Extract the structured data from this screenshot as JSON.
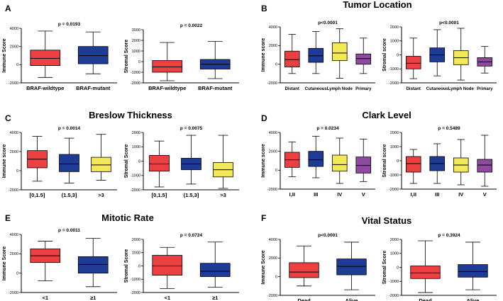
{
  "colors": {
    "red": "#ec3f42",
    "blue": "#1e3c96",
    "yellow": "#f3e857",
    "purple": "#8e49a1"
  },
  "panels": [
    {
      "letter": "A",
      "title": ""
    },
    {
      "letter": "B",
      "title": "Tumor Location"
    },
    {
      "letter": "C",
      "title": "Breslow Thickness"
    },
    {
      "letter": "D",
      "title": "Clark Level"
    },
    {
      "letter": "E",
      "title": "Mitotic Rate"
    },
    {
      "letter": "F",
      "title": "Vital Status"
    }
  ],
  "chart_data": [
    {
      "id": "A1",
      "type": "box",
      "ylabel": "Immune Score",
      "ylim": [
        -2000,
        4000
      ],
      "yticks": [
        -2000,
        0,
        2000,
        4000
      ],
      "p_label": "p = 0.0193",
      "categories": [
        "BRAF-wildtype",
        "BRAF-mutant"
      ],
      "colors": [
        "red",
        "blue"
      ],
      "boxes": [
        {
          "min": -1400,
          "q1": -100,
          "median": 700,
          "q3": 1600,
          "max": 3700
        },
        {
          "min": -1000,
          "q1": 100,
          "median": 1000,
          "q3": 2000,
          "max": 3600
        }
      ]
    },
    {
      "id": "A2",
      "type": "box",
      "ylabel": "Stromal Score",
      "ylim": [
        -2000,
        3000
      ],
      "yticks": [
        -2000,
        -1000,
        0,
        1000,
        2000,
        3000
      ],
      "p_label": "p = 0.0022",
      "categories": [
        "BRAF-wildtype",
        "BRAF-mutant"
      ],
      "colors": [
        "red",
        "blue"
      ],
      "boxes": [
        {
          "min": -1800,
          "q1": -1000,
          "median": -500,
          "q3": 100,
          "max": 1800
        },
        {
          "min": -1600,
          "q1": -700,
          "median": -250,
          "q3": 200,
          "max": 1900
        }
      ]
    },
    {
      "id": "B1",
      "type": "box",
      "ylabel": "Immune score",
      "ylim": [
        -2000,
        4000
      ],
      "yticks": [
        -2000,
        0,
        2000,
        4000
      ],
      "p_label": "p<0.0001",
      "categories": [
        "Distant",
        "Cutaneous",
        "Lymph Node",
        "Primary"
      ],
      "colors": [
        "red",
        "blue",
        "yellow",
        "purple"
      ],
      "boxes": [
        {
          "min": -1000,
          "q1": -300,
          "median": 500,
          "q3": 1400,
          "max": 3200
        },
        {
          "min": -1000,
          "q1": 200,
          "median": 900,
          "q3": 1700,
          "max": 3500
        },
        {
          "min": -1500,
          "q1": 400,
          "median": 1200,
          "q3": 2300,
          "max": 3800
        },
        {
          "min": -1000,
          "q1": 0,
          "median": 600,
          "q3": 1100,
          "max": 2800
        }
      ]
    },
    {
      "id": "B2",
      "type": "box",
      "ylabel": "Stromal score",
      "ylim": [
        -2000,
        2000
      ],
      "yticks": [
        -2000,
        -1000,
        0,
        1000,
        2000
      ],
      "p_label": "p<0.0001",
      "categories": [
        "Distant",
        "Cutaneous",
        "Lymph Node",
        "Primary"
      ],
      "colors": [
        "red",
        "blue",
        "yellow",
        "purple"
      ],
      "boxes": [
        {
          "min": -1700,
          "q1": -1000,
          "median": -600,
          "q3": -100,
          "max": 1200
        },
        {
          "min": -1500,
          "q1": -500,
          "median": 0,
          "q3": 500,
          "max": 1800
        },
        {
          "min": -1800,
          "q1": -700,
          "median": -200,
          "q3": 300,
          "max": 1900
        },
        {
          "min": -1300,
          "q1": -800,
          "median": -500,
          "q3": -200,
          "max": 600
        }
      ]
    },
    {
      "id": "C1",
      "type": "box",
      "ylabel": "Immune score",
      "ylim": [
        -2000,
        4000
      ],
      "yticks": [
        -2000,
        0,
        2000,
        4000
      ],
      "p_label": "p = 0.0014",
      "categories": [
        "[0,1.5]",
        "(1.5,3]",
        ">3"
      ],
      "colors": [
        "red",
        "blue",
        "yellow"
      ],
      "boxes": [
        {
          "min": -1100,
          "q1": 300,
          "median": 1200,
          "q3": 2100,
          "max": 3600
        },
        {
          "min": -1300,
          "q1": -100,
          "median": 700,
          "q3": 1700,
          "max": 3400
        },
        {
          "min": -1000,
          "q1": -100,
          "median": 600,
          "q3": 1400,
          "max": 3800
        }
      ]
    },
    {
      "id": "C2",
      "type": "box",
      "ylabel": "Stromal Score",
      "ylim": [
        -2000,
        2000
      ],
      "yticks": [
        -2000,
        -1000,
        0,
        1000,
        2000
      ],
      "p_label": "p = 0.0075",
      "categories": [
        "[0,1.5]",
        "(1.5,3]",
        ">3"
      ],
      "colors": [
        "red",
        "blue",
        "yellow"
      ],
      "boxes": [
        {
          "min": -1800,
          "q1": -700,
          "median": -200,
          "q3": 400,
          "max": 1400
        },
        {
          "min": -1600,
          "q1": -600,
          "median": -200,
          "q3": 200,
          "max": 1800
        },
        {
          "min": -1900,
          "q1": -1100,
          "median": -600,
          "q3": -100,
          "max": 1800
        }
      ]
    },
    {
      "id": "D1",
      "type": "box",
      "ylabel": "Immune score",
      "ylim": [
        -2000,
        4000
      ],
      "yticks": [
        -2000,
        0,
        2000,
        4000
      ],
      "p_label": "p = 0.0234",
      "categories": [
        "I,II",
        "III",
        "IV",
        "V"
      ],
      "colors": [
        "red",
        "blue",
        "yellow",
        "purple"
      ],
      "boxes": [
        {
          "min": -700,
          "q1": 300,
          "median": 1100,
          "q3": 1900,
          "max": 3000
        },
        {
          "min": -800,
          "q1": 400,
          "median": 1100,
          "q3": 2000,
          "max": 3600
        },
        {
          "min": -1400,
          "q1": -100,
          "median": 600,
          "q3": 1600,
          "max": 3400
        },
        {
          "min": -1200,
          "q1": -300,
          "median": 500,
          "q3": 1400,
          "max": 3300
        }
      ]
    },
    {
      "id": "D2",
      "type": "box",
      "ylabel": "Stromal score",
      "ylim": [
        -2000,
        2000
      ],
      "yticks": [
        -2000,
        -1000,
        0,
        1000,
        2000
      ],
      "p_label": "p = 0.5489",
      "categories": [
        "I,II",
        "III",
        "IV",
        "V"
      ],
      "colors": [
        "red",
        "blue",
        "yellow",
        "purple"
      ],
      "boxes": [
        {
          "min": -1600,
          "q1": -800,
          "median": -200,
          "q3": 300,
          "max": 800
        },
        {
          "min": -1600,
          "q1": -700,
          "median": -200,
          "q3": 300,
          "max": 1200
        },
        {
          "min": -1700,
          "q1": -800,
          "median": -300,
          "q3": 200,
          "max": 1500
        },
        {
          "min": -1800,
          "q1": -800,
          "median": -300,
          "q3": 100,
          "max": 1800
        }
      ]
    },
    {
      "id": "E1",
      "type": "box",
      "ylabel": "Immune Score",
      "ylim": [
        -2000,
        4000
      ],
      "yticks": [
        -2000,
        0,
        2000,
        4000
      ],
      "p_label": "p = 0.0011",
      "categories": [
        "<1",
        "≥1"
      ],
      "colors": [
        "red",
        "blue"
      ],
      "boxes": [
        {
          "min": -800,
          "q1": 1100,
          "median": 1800,
          "q3": 2500,
          "max": 3300
        },
        {
          "min": -1400,
          "q1": 0,
          "median": 900,
          "q3": 1700,
          "max": 3600
        }
      ]
    },
    {
      "id": "E2",
      "type": "box",
      "ylabel": "Stromal Score",
      "ylim": [
        -2000,
        2000
      ],
      "yticks": [
        -2000,
        -1000,
        0,
        1000,
        2000
      ],
      "p_label": "p = 0.0724",
      "categories": [
        "<1",
        "≥1"
      ],
      "colors": [
        "red",
        "blue"
      ],
      "boxes": [
        {
          "min": -1700,
          "q1": -700,
          "median": 0,
          "q3": 800,
          "max": 1400
        },
        {
          "min": -1600,
          "q1": -800,
          "median": -400,
          "q3": 200,
          "max": 1800
        }
      ]
    },
    {
      "id": "F1",
      "type": "box",
      "ylabel": "Immune Score",
      "ylim": [
        -2000,
        4000
      ],
      "yticks": [
        -2000,
        0,
        2000,
        4000
      ],
      "p_label": "p<0.0001",
      "categories": [
        "Dead",
        "Alive"
      ],
      "colors": [
        "red",
        "blue"
      ],
      "boxes": [
        {
          "min": -1000,
          "q1": -100,
          "median": 500,
          "q3": 1500,
          "max": 3300
        },
        {
          "min": -1400,
          "q1": 200,
          "median": 1100,
          "q3": 1900,
          "max": 3700
        }
      ]
    },
    {
      "id": "F2",
      "type": "box",
      "ylabel": "Stromal Score",
      "ylim": [
        -2000,
        2000
      ],
      "yticks": [
        -2000,
        -1000,
        0,
        1000,
        2000
      ],
      "p_label": "p = 0.3924",
      "categories": [
        "Dead",
        "Alive"
      ],
      "colors": [
        "red",
        "blue"
      ],
      "boxes": [
        {
          "min": -1800,
          "q1": -800,
          "median": -400,
          "q3": 100,
          "max": 1900
        },
        {
          "min": -1600,
          "q1": -700,
          "median": -300,
          "q3": 200,
          "max": 1800
        }
      ]
    }
  ]
}
